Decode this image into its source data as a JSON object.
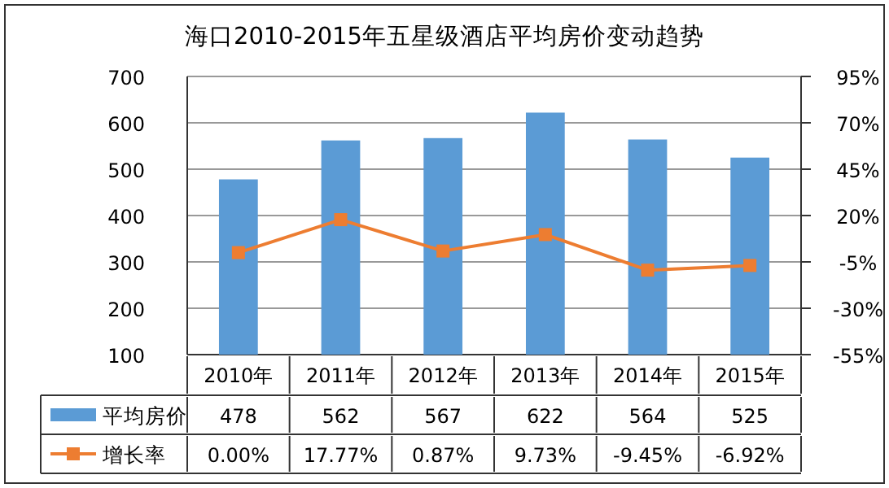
{
  "chart_data": {
    "type": "bar",
    "title": "海口2010-2015年五星级酒店平均房价变动趋势",
    "categories": [
      "2010年",
      "2011年",
      "2012年",
      "2013年",
      "2014年",
      "2015年"
    ],
    "series": [
      {
        "name": "平均房价",
        "color": "#5b9bd5",
        "values": [
          478,
          562,
          567,
          622,
          564,
          525
        ],
        "value_labels": [
          "478",
          "562",
          "567",
          "622",
          "564",
          "525"
        ]
      },
      {
        "name": "增长率",
        "type": "line",
        "axis": "y2",
        "marker": "square",
        "color": "#ed7d31",
        "values": [
          0.0,
          17.77,
          0.87,
          9.73,
          -9.45,
          -6.92
        ],
        "value_labels": [
          "0.00%",
          "17.77%",
          "0.87%",
          "9.73%",
          "-9.45%",
          "-6.92%"
        ]
      }
    ],
    "ylim": [
      100,
      700
    ],
    "yticks": [
      100,
      200,
      300,
      400,
      500,
      600,
      700
    ],
    "y2lim": [
      -55,
      95
    ],
    "y2ticks": [
      {
        "value": -55,
        "label": "-55%"
      },
      {
        "value": -30,
        "label": "-30%"
      },
      {
        "value": -5,
        "label": "-5%"
      },
      {
        "value": 20,
        "label": "20%"
      },
      {
        "value": 45,
        "label": "45%"
      },
      {
        "value": 70,
        "label": "70%"
      },
      {
        "value": 95,
        "label": "95%"
      }
    ],
    "grid": "y",
    "legend": "bottom"
  }
}
